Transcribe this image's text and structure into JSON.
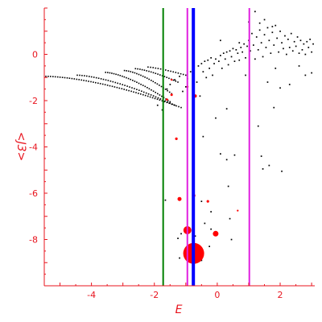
{
  "chart_data": {
    "type": "scatter",
    "title": "",
    "xlabel": "E",
    "ylabel": "<J3>",
    "xlim": [
      -5.5,
      3.1
    ],
    "ylim": [
      -10.0,
      2.0
    ],
    "x_ticks": [
      -4,
      -2,
      0,
      2
    ],
    "y_ticks": [
      0,
      -2,
      -4,
      -6,
      -8
    ],
    "x_tick_labels": [
      "-4",
      "-2",
      "0",
      "2"
    ],
    "y_tick_labels": [
      "0",
      "-2",
      "-4",
      "-6",
      "-8"
    ],
    "grid": false,
    "vertical_lines": [
      {
        "x": -1.72,
        "color": "#008000"
      },
      {
        "x": -0.95,
        "color": "#e020e0"
      },
      {
        "x": -0.76,
        "color": "#0000ff"
      },
      {
        "x": 1.02,
        "color": "#e020e0"
      }
    ],
    "colors": {
      "axis": "#e8141e",
      "black_points": "#000000",
      "red_points": "#ff0000"
    },
    "branches": [
      {
        "x_start": -5.45,
        "y_start": -0.95,
        "x_end": -1.15,
        "y_end": -2.3,
        "count": 58,
        "curve": 0.6
      },
      {
        "x_start": -4.45,
        "y_start": -0.9,
        "x_end": -1.35,
        "y_end": -2.2,
        "count": 42,
        "curve": 0.5
      },
      {
        "x_start": -3.55,
        "y_start": -0.78,
        "x_end": -1.5,
        "y_end": -2.05,
        "count": 32,
        "curve": 0.5
      },
      {
        "x_start": -2.95,
        "y_start": -0.7,
        "x_end": -1.45,
        "y_end": -1.7,
        "count": 24,
        "curve": 0.5
      },
      {
        "x_start": -2.6,
        "y_start": -0.62,
        "x_end": -1.25,
        "y_end": -1.2,
        "count": 20,
        "curve": 0.4
      },
      {
        "x_start": -2.2,
        "y_start": -0.55,
        "x_end": -1.0,
        "y_end": -0.9,
        "count": 16,
        "curve": 0.3
      }
    ],
    "black_points": [
      [
        -1.9,
        -2.2
      ],
      [
        -1.75,
        -2.4
      ],
      [
        -1.6,
        -1.5
      ],
      [
        -1.5,
        -1.3
      ],
      [
        -1.35,
        -1.1
      ],
      [
        -1.2,
        -0.95
      ],
      [
        -1.1,
        -1.6
      ],
      [
        -1.0,
        -1.4
      ],
      [
        -0.95,
        -1.05
      ],
      [
        -0.85,
        -0.75
      ],
      [
        -0.75,
        -0.6
      ],
      [
        -0.65,
        -1.2
      ],
      [
        -0.6,
        -0.5
      ],
      [
        -0.55,
        -1.8
      ],
      [
        -0.5,
        -0.4
      ],
      [
        -0.45,
        -0.75
      ],
      [
        -0.4,
        -0.3
      ],
      [
        -0.35,
        -1.0
      ],
      [
        -0.3,
        -0.25
      ],
      [
        -0.25,
        -0.6
      ],
      [
        -0.2,
        -0.15
      ],
      [
        -0.15,
        -0.9
      ],
      [
        -0.1,
        -0.4
      ],
      [
        -0.05,
        -0.2
      ],
      [
        0.05,
        -0.3
      ],
      [
        0.1,
        -0.05
      ],
      [
        0.15,
        -0.6
      ],
      [
        0.2,
        0.05
      ],
      [
        0.25,
        -0.2
      ],
      [
        0.3,
        0.1
      ],
      [
        0.35,
        -0.45
      ],
      [
        0.4,
        0.15
      ],
      [
        0.45,
        -0.1
      ],
      [
        0.5,
        0.25
      ],
      [
        0.55,
        -0.3
      ],
      [
        0.6,
        0.2
      ],
      [
        0.65,
        0.05
      ],
      [
        0.7,
        -0.25
      ],
      [
        0.75,
        0.3
      ],
      [
        0.8,
        0.1
      ],
      [
        0.85,
        0.45
      ],
      [
        0.9,
        -0.15
      ],
      [
        0.95,
        0.35
      ],
      [
        1.0,
        0.6
      ],
      [
        1.05,
        0.15
      ],
      [
        1.1,
        0.9
      ],
      [
        1.15,
        0.4
      ],
      [
        1.2,
        -0.2
      ],
      [
        1.25,
        0.75
      ],
      [
        1.3,
        0.2
      ],
      [
        1.35,
        1.05
      ],
      [
        1.4,
        0.5
      ],
      [
        1.45,
        -0.1
      ],
      [
        1.5,
        0.85
      ],
      [
        1.55,
        0.3
      ],
      [
        1.6,
        1.15
      ],
      [
        1.65,
        0.6
      ],
      [
        1.7,
        0.05
      ],
      [
        1.75,
        0.95
      ],
      [
        1.8,
        0.4
      ],
      [
        1.85,
        1.25
      ],
      [
        1.9,
        0.7
      ],
      [
        1.95,
        0.1
      ],
      [
        2.0,
        1.0
      ],
      [
        2.05,
        0.5
      ],
      [
        2.1,
        0.25
      ],
      [
        2.15,
        0.8
      ],
      [
        2.2,
        0.0
      ],
      [
        2.25,
        0.65
      ],
      [
        2.3,
        0.3
      ],
      [
        2.35,
        0.9
      ],
      [
        2.4,
        0.15
      ],
      [
        2.45,
        0.55
      ],
      [
        2.5,
        0.35
      ],
      [
        2.55,
        0.75
      ],
      [
        2.6,
        0.05
      ],
      [
        2.65,
        0.6
      ],
      [
        2.7,
        0.2
      ],
      [
        2.75,
        0.45
      ],
      [
        2.8,
        0.0
      ],
      [
        2.85,
        0.55
      ],
      [
        2.9,
        0.3
      ],
      [
        2.95,
        0.65
      ],
      [
        3.0,
        0.1
      ],
      [
        3.05,
        0.45
      ],
      [
        1.0,
        1.4
      ],
      [
        1.35,
        1.35
      ],
      [
        1.5,
        1.5
      ],
      [
        1.2,
        1.85
      ],
      [
        0.1,
        0.6
      ],
      [
        0.7,
        0.5
      ],
      [
        1.75,
        1.2
      ],
      [
        2.6,
        -0.5
      ],
      [
        2.8,
        -0.9
      ],
      [
        3.0,
        -0.8
      ],
      [
        2.3,
        -1.3
      ],
      [
        2.0,
        -1.45
      ],
      [
        1.6,
        -1.2
      ],
      [
        1.85,
        -0.6
      ],
      [
        0.9,
        -0.9
      ],
      [
        -0.05,
        -2.75
      ],
      [
        0.3,
        -2.35
      ],
      [
        1.8,
        -2.3
      ],
      [
        1.3,
        -3.1
      ],
      [
        -0.45,
        -3.55
      ],
      [
        0.1,
        -4.3
      ],
      [
        0.55,
        -4.35
      ],
      [
        1.4,
        -4.4
      ],
      [
        0.3,
        -4.55
      ],
      [
        2.05,
        -5.05
      ],
      [
        1.45,
        -4.95
      ],
      [
        1.65,
        -4.8
      ],
      [
        -1.65,
        -6.3
      ],
      [
        -0.5,
        -6.35
      ],
      [
        0.35,
        -5.7
      ],
      [
        0.4,
        -7.1
      ],
      [
        -0.2,
        -6.8
      ],
      [
        -0.75,
        -6.25
      ],
      [
        -0.75,
        -7.6
      ],
      [
        -0.7,
        -7.85
      ],
      [
        -1.15,
        -7.75
      ],
      [
        -1.25,
        -7.95
      ],
      [
        -0.4,
        -7.3
      ],
      [
        -0.2,
        -7.55
      ],
      [
        0.45,
        -8.0
      ],
      [
        -0.75,
        -8.35
      ],
      [
        -1.0,
        -8.5
      ],
      [
        -0.5,
        -8.9
      ],
      [
        -1.2,
        -8.8
      ],
      [
        -0.25,
        -8.3
      ]
    ],
    "red_points": [
      {
        "x": -0.75,
        "y": -8.6,
        "size": 13
      },
      {
        "x": -0.95,
        "y": -7.6,
        "size": 5
      },
      {
        "x": -0.05,
        "y": -7.75,
        "size": 3.5
      },
      {
        "x": -1.2,
        "y": -6.25,
        "size": 2.5
      },
      {
        "x": -0.75,
        "y": -6.1,
        "size": 2.2
      },
      {
        "x": -0.3,
        "y": -6.35,
        "size": 1.6
      },
      {
        "x": -1.3,
        "y": -3.65,
        "size": 1.6
      },
      {
        "x": -0.7,
        "y": -1.8,
        "size": 2
      },
      {
        "x": -1.45,
        "y": -1.75,
        "size": 1.5
      },
      {
        "x": -1.6,
        "y": -1.95,
        "size": 1.4
      },
      {
        "x": -0.95,
        "y": -1.4,
        "size": 1.4
      },
      {
        "x": -1.45,
        "y": -1.1,
        "size": 1.2
      },
      {
        "x": 0.65,
        "y": -6.75,
        "size": 1.1
      }
    ]
  }
}
